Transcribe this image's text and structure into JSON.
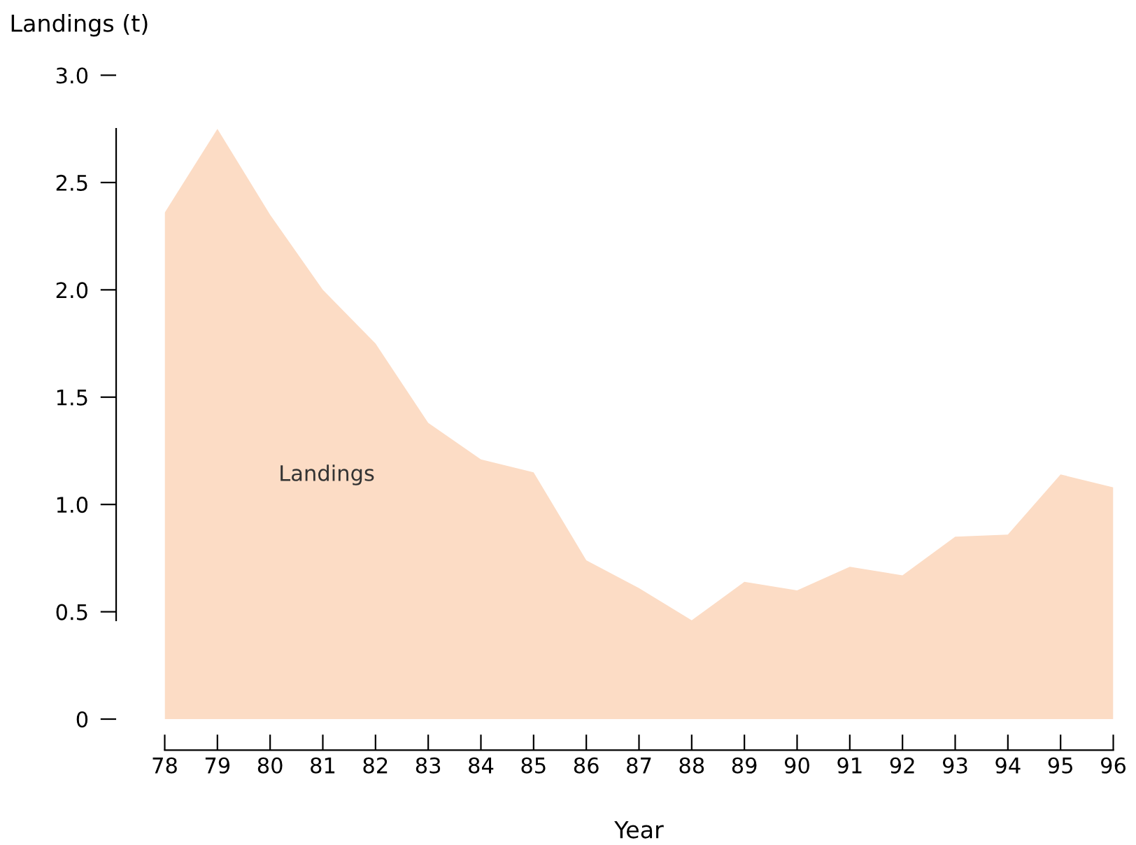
{
  "chart_data": {
    "type": "area",
    "xlabel": "Year",
    "ylabel": "Landings (t)",
    "x": [
      78,
      79,
      80,
      81,
      82,
      83,
      84,
      85,
      86,
      87,
      88,
      89,
      90,
      91,
      92,
      93,
      94,
      95,
      96
    ],
    "xlim": [
      78,
      96
    ],
    "xticks": [
      78,
      79,
      80,
      81,
      82,
      83,
      84,
      85,
      86,
      87,
      88,
      89,
      90,
      91,
      92,
      93,
      94,
      95,
      96
    ],
    "ylim": [
      0,
      3.0
    ],
    "yticks": [
      {
        "value": 0,
        "label": "0"
      },
      {
        "value": 0.5,
        "label": "0.5"
      },
      {
        "value": 1.0,
        "label": "1.0"
      },
      {
        "value": 1.5,
        "label": "1.5"
      },
      {
        "value": 2.0,
        "label": "2.0"
      },
      {
        "value": 2.5,
        "label": "2.5"
      },
      {
        "value": 3.0,
        "label": "3.0"
      }
    ],
    "grid": false,
    "legend": false,
    "series": [
      {
        "name": "Landings",
        "color": "#fcdcc5",
        "values": [
          2.36,
          2.75,
          2.35,
          2.0,
          1.75,
          1.38,
          1.21,
          1.15,
          0.74,
          0.61,
          0.46,
          0.64,
          0.6,
          0.71,
          0.67,
          0.85,
          0.86,
          1.14,
          1.08
        ]
      }
    ]
  }
}
